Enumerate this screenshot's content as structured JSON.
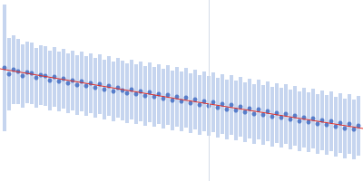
{
  "chart_data": {
    "type": "scatter",
    "xlim": [
      0,
      400
    ],
    "ylim": [
      0,
      200
    ],
    "tick_labels": false,
    "grid": false,
    "color": "#3a66c0",
    "x": [
      5,
      10,
      15,
      20,
      25,
      30,
      35,
      40,
      45,
      50,
      55,
      60,
      65,
      70,
      75,
      80,
      85,
      90,
      95,
      100,
      105,
      110,
      115,
      120,
      125,
      130,
      135,
      140,
      145,
      150,
      155,
      160,
      165,
      170,
      175,
      180,
      185,
      190,
      195,
      200,
      205,
      210,
      215,
      220,
      225,
      230,
      235,
      240,
      245,
      250,
      255,
      260,
      265,
      270,
      275,
      280,
      285,
      290,
      295,
      300,
      305,
      310,
      315,
      320,
      325,
      330,
      335,
      340,
      345,
      350,
      355,
      360,
      365,
      370,
      375,
      380,
      385,
      390,
      395
    ],
    "values": [
      125,
      118,
      123,
      121,
      116,
      120,
      119,
      114,
      117,
      116,
      111,
      115,
      110,
      113,
      108,
      111,
      106,
      110,
      105,
      108,
      103,
      107,
      101,
      105,
      99,
      103,
      100,
      97,
      101,
      96,
      99,
      94,
      98,
      93,
      96,
      91,
      95,
      89,
      93,
      88,
      92,
      86,
      90,
      84,
      88,
      83,
      87,
      81,
      85,
      79,
      84,
      78,
      82,
      76,
      80,
      74,
      79,
      73,
      77,
      71,
      75,
      70,
      74,
      68,
      72,
      66,
      70,
      65,
      69,
      63,
      67,
      62,
      66,
      60,
      64,
      58,
      63,
      57,
      61
    ],
    "errors": [
      70,
      40,
      38,
      36,
      35,
      34,
      34,
      33,
      33,
      33,
      33,
      33,
      33,
      33,
      33,
      33,
      33,
      33,
      33,
      33,
      33,
      33,
      33,
      33,
      33,
      33,
      33,
      33,
      33,
      33,
      33,
      33,
      33,
      33,
      33,
      33,
      33,
      33,
      33,
      33,
      33,
      33,
      33,
      33,
      33,
      33,
      33,
      33,
      33,
      33,
      33,
      33,
      33,
      33,
      33,
      33,
      33,
      33,
      33,
      33,
      33,
      33,
      33,
      33,
      33,
      33,
      33,
      33,
      33,
      33,
      33,
      33,
      33,
      33,
      33,
      33,
      33,
      33,
      33
    ],
    "fit": {
      "x": [
        0,
        200,
        400
      ],
      "values": [
        124,
        90,
        58
      ],
      "color": "#e0302a"
    },
    "vertical_line_x": 230
  }
}
